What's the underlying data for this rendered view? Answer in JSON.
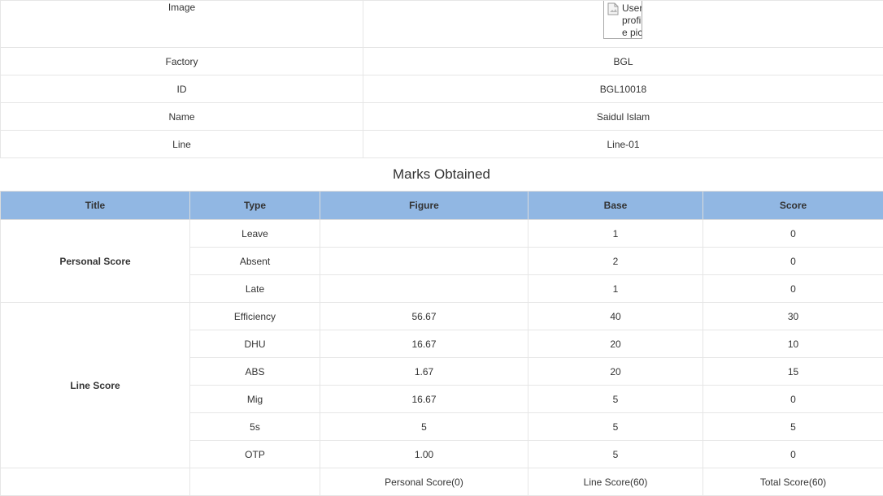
{
  "info": {
    "rows": [
      {
        "label": "Image",
        "value": ""
      },
      {
        "label": "Factory",
        "value": "BGL"
      },
      {
        "label": "ID",
        "value": "BGL10018"
      },
      {
        "label": "Name",
        "value": "Saidul Islam"
      },
      {
        "label": "Line",
        "value": "Line-01"
      }
    ],
    "image_alt": "User profile picture",
    "image_icon": "broken-image-icon"
  },
  "marks": {
    "title": "Marks Obtained",
    "columns": [
      "Title",
      "Type",
      "Figure",
      "Base",
      "Score"
    ],
    "groups": [
      {
        "title": "Personal Score",
        "rows": [
          {
            "type": "Leave",
            "figure": "",
            "base": "1",
            "score": "0"
          },
          {
            "type": "Absent",
            "figure": "",
            "base": "2",
            "score": "0"
          },
          {
            "type": "Late",
            "figure": "",
            "base": "1",
            "score": "0"
          }
        ]
      },
      {
        "title": "Line Score",
        "rows": [
          {
            "type": "Efficiency",
            "figure": "56.67",
            "base": "40",
            "score": "30"
          },
          {
            "type": "DHU",
            "figure": "16.67",
            "base": "20",
            "score": "10"
          },
          {
            "type": "ABS",
            "figure": "1.67",
            "base": "20",
            "score": "15"
          },
          {
            "type": "Mig",
            "figure": "16.67",
            "base": "5",
            "score": "0"
          },
          {
            "type": "5s",
            "figure": "5",
            "base": "5",
            "score": "5"
          },
          {
            "type": "OTP",
            "figure": "1.00",
            "base": "5",
            "score": "0"
          }
        ]
      }
    ],
    "totals": {
      "title": "",
      "type": "",
      "figure": "Personal Score(0)",
      "base": "Line Score(60)",
      "score": "Total Score(60)"
    },
    "header_color": "#91b7e3"
  }
}
